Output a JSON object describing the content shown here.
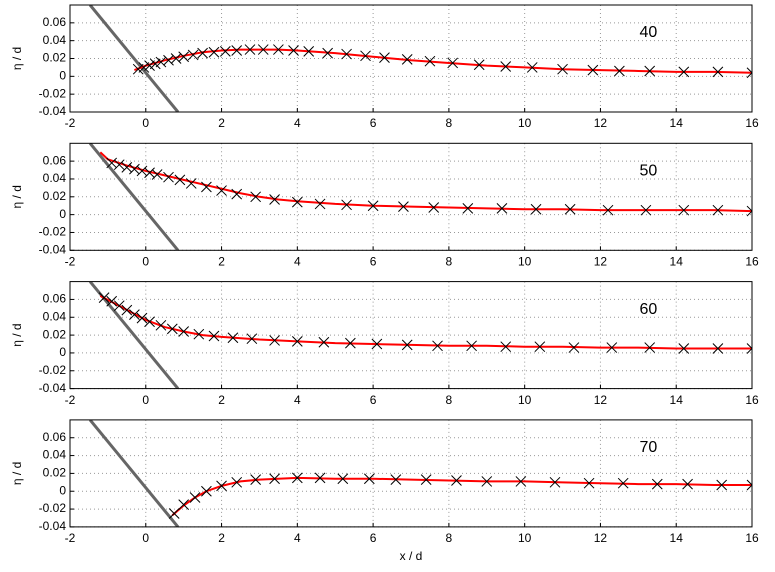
{
  "chart_data": [
    {
      "type": "line",
      "annotation": "40",
      "ylabel": "η / d",
      "xlim": [
        -2,
        16
      ],
      "ylim": [
        -0.04,
        0.08
      ],
      "xticks": [
        -2,
        0,
        2,
        4,
        6,
        8,
        10,
        12,
        14,
        16
      ],
      "yticks": [
        -0.04,
        -0.02,
        0,
        0.02,
        0.04,
        0.06
      ],
      "grid": true,
      "series": [
        {
          "color": "#666666",
          "marker": "none",
          "x": [
            -1.47,
            0.85
          ],
          "values": [
            0.08,
            -0.04
          ]
        },
        {
          "color": "#ff0000",
          "marker": "none",
          "x": [
            -0.3,
            0,
            0.5,
            1,
            1.5,
            2,
            2.5,
            3,
            3.5,
            4,
            5,
            6,
            7,
            8,
            9,
            10,
            11,
            12,
            13,
            14,
            15,
            16
          ],
          "values": [
            0.007,
            0.012,
            0.018,
            0.023,
            0.027,
            0.029,
            0.03,
            0.03,
            0.03,
            0.029,
            0.026,
            0.022,
            0.018,
            0.015,
            0.012,
            0.01,
            0.008,
            0.007,
            0.006,
            0.005,
            0.005,
            0.004
          ]
        },
        {
          "color": "#000000",
          "marker": "x",
          "x": [
            -0.2,
            -0.05,
            0.1,
            0.25,
            0.4,
            0.6,
            0.8,
            1.0,
            1.25,
            1.5,
            1.8,
            2.1,
            2.4,
            2.75,
            3.1,
            3.5,
            3.9,
            4.3,
            4.8,
            5.3,
            5.8,
            6.3,
            6.9,
            7.5,
            8.1,
            8.8,
            9.5,
            10.2,
            11.0,
            11.8,
            12.5,
            13.3,
            14.2,
            15.1,
            16
          ],
          "values": [
            0.008,
            0.01,
            0.012,
            0.014,
            0.016,
            0.018,
            0.02,
            0.022,
            0.024,
            0.026,
            0.027,
            0.028,
            0.029,
            0.03,
            0.03,
            0.03,
            0.029,
            0.028,
            0.026,
            0.025,
            0.023,
            0.021,
            0.019,
            0.017,
            0.015,
            0.013,
            0.011,
            0.01,
            0.008,
            0.007,
            0.006,
            0.006,
            0.005,
            0.005,
            0.004
          ]
        }
      ]
    },
    {
      "type": "line",
      "annotation": "50",
      "ylabel": "η / d",
      "xlim": [
        -2,
        16
      ],
      "ylim": [
        -0.04,
        0.08
      ],
      "xticks": [
        -2,
        0,
        2,
        4,
        6,
        8,
        10,
        12,
        14,
        16
      ],
      "yticks": [
        -0.04,
        -0.02,
        0,
        0.02,
        0.04,
        0.06
      ],
      "grid": true,
      "series": [
        {
          "color": "#666666",
          "marker": "none",
          "x": [
            -1.47,
            0.85
          ],
          "values": [
            0.08,
            -0.04
          ]
        },
        {
          "color": "#ff0000",
          "marker": "none",
          "x": [
            -1.2,
            -1,
            -0.5,
            0,
            0.5,
            1,
            1.5,
            2,
            2.5,
            3,
            3.5,
            4,
            5,
            6,
            7,
            8,
            9,
            10,
            11,
            12,
            13,
            14,
            15,
            16
          ],
          "values": [
            0.07,
            0.062,
            0.055,
            0.049,
            0.044,
            0.039,
            0.034,
            0.029,
            0.024,
            0.02,
            0.017,
            0.015,
            0.012,
            0.01,
            0.009,
            0.008,
            0.007,
            0.006,
            0.006,
            0.005,
            0.005,
            0.005,
            0.005,
            0.004
          ]
        },
        {
          "color": "#000000",
          "marker": "x",
          "x": [
            -0.9,
            -0.7,
            -0.5,
            -0.3,
            -0.1,
            0.1,
            0.3,
            0.6,
            0.9,
            1.2,
            1.6,
            2.0,
            2.4,
            2.9,
            3.4,
            4.0,
            4.6,
            5.3,
            6.0,
            6.8,
            7.6,
            8.5,
            9.4,
            10.3,
            11.2,
            12.2,
            13.2,
            14.2,
            15.1,
            16
          ],
          "values": [
            0.058,
            0.056,
            0.053,
            0.051,
            0.049,
            0.047,
            0.045,
            0.042,
            0.039,
            0.035,
            0.031,
            0.027,
            0.023,
            0.02,
            0.017,
            0.014,
            0.012,
            0.011,
            0.01,
            0.009,
            0.008,
            0.007,
            0.007,
            0.006,
            0.006,
            0.005,
            0.005,
            0.005,
            0.005,
            0.004
          ]
        }
      ]
    },
    {
      "type": "line",
      "annotation": "60",
      "ylabel": "η / d",
      "xlim": [
        -2,
        16
      ],
      "ylim": [
        -0.04,
        0.08
      ],
      "xticks": [
        -2,
        0,
        2,
        4,
        6,
        8,
        10,
        12,
        14,
        16
      ],
      "yticks": [
        -0.04,
        -0.02,
        0,
        0.02,
        0.04,
        0.06
      ],
      "grid": true,
      "series": [
        {
          "color": "#666666",
          "marker": "none",
          "x": [
            -1.47,
            0.85
          ],
          "values": [
            0.08,
            -0.04
          ]
        },
        {
          "color": "#ff0000",
          "marker": "none",
          "x": [
            -1.2,
            -0.8,
            -0.4,
            0,
            0.5,
            1,
            1.5,
            2,
            3,
            4,
            5,
            6,
            7,
            8,
            9,
            10,
            11,
            12,
            13,
            14,
            15,
            16
          ],
          "values": [
            0.064,
            0.055,
            0.046,
            0.037,
            0.029,
            0.024,
            0.02,
            0.018,
            0.015,
            0.013,
            0.011,
            0.01,
            0.009,
            0.008,
            0.008,
            0.007,
            0.007,
            0.006,
            0.006,
            0.005,
            0.005,
            0.005
          ]
        },
        {
          "color": "#000000",
          "marker": "x",
          "x": [
            -1.1,
            -0.9,
            -0.7,
            -0.5,
            -0.3,
            -0.1,
            0.1,
            0.4,
            0.7,
            1.0,
            1.4,
            1.8,
            2.3,
            2.8,
            3.4,
            4.0,
            4.7,
            5.4,
            6.1,
            6.9,
            7.7,
            8.6,
            9.5,
            10.4,
            11.3,
            12.3,
            13.3,
            14.2,
            15.1,
            16
          ],
          "values": [
            0.062,
            0.058,
            0.053,
            0.048,
            0.043,
            0.039,
            0.035,
            0.031,
            0.027,
            0.024,
            0.021,
            0.019,
            0.017,
            0.016,
            0.014,
            0.013,
            0.012,
            0.011,
            0.01,
            0.009,
            0.008,
            0.008,
            0.007,
            0.007,
            0.006,
            0.006,
            0.006,
            0.005,
            0.005,
            0.005
          ]
        }
      ]
    },
    {
      "type": "line",
      "annotation": "70",
      "ylabel": "η / d",
      "xlabel": "x / d",
      "xlim": [
        -2,
        16
      ],
      "ylim": [
        -0.04,
        0.08
      ],
      "xticks": [
        -2,
        0,
        2,
        4,
        6,
        8,
        10,
        12,
        14,
        16
      ],
      "yticks": [
        -0.04,
        -0.02,
        0,
        0.02,
        0.04,
        0.06
      ],
      "grid": true,
      "series": [
        {
          "color": "#666666",
          "marker": "none",
          "x": [
            -1.47,
            0.85
          ],
          "values": [
            0.08,
            -0.04
          ]
        },
        {
          "color": "#ff0000",
          "marker": "none",
          "x": [
            0.7,
            1,
            1.3,
            1.6,
            2,
            2.5,
            3,
            3.5,
            4,
            5,
            6,
            7,
            8,
            9,
            10,
            11,
            12,
            13,
            14,
            15,
            16
          ],
          "values": [
            -0.027,
            -0.016,
            -0.007,
            0.0,
            0.006,
            0.011,
            0.013,
            0.014,
            0.015,
            0.014,
            0.014,
            0.013,
            0.012,
            0.011,
            0.011,
            0.01,
            0.009,
            0.008,
            0.008,
            0.007,
            0.007
          ]
        },
        {
          "color": "#000000",
          "marker": "x",
          "x": [
            0.75,
            1.0,
            1.3,
            1.6,
            2.0,
            2.4,
            2.9,
            3.4,
            4.0,
            4.6,
            5.2,
            5.9,
            6.6,
            7.4,
            8.2,
            9.0,
            9.9,
            10.8,
            11.7,
            12.6,
            13.5,
            14.3,
            15.2,
            16
          ],
          "values": [
            -0.025,
            -0.015,
            -0.007,
            0.0,
            0.006,
            0.01,
            0.013,
            0.014,
            0.015,
            0.015,
            0.014,
            0.014,
            0.013,
            0.013,
            0.012,
            0.011,
            0.011,
            0.01,
            0.009,
            0.009,
            0.008,
            0.008,
            0.007,
            0.007
          ]
        }
      ]
    }
  ]
}
